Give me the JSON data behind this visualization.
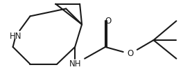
{
  "background_color": "#ffffff",
  "line_color": "#1a1a1a",
  "line_width": 1.5,
  "figsize": [
    2.64,
    1.2
  ],
  "dpi": 100,
  "HN_label": "HN",
  "NH_label": "NH",
  "O1_label": "O",
  "O2_label": "O",
  "fontsize": 8.5
}
